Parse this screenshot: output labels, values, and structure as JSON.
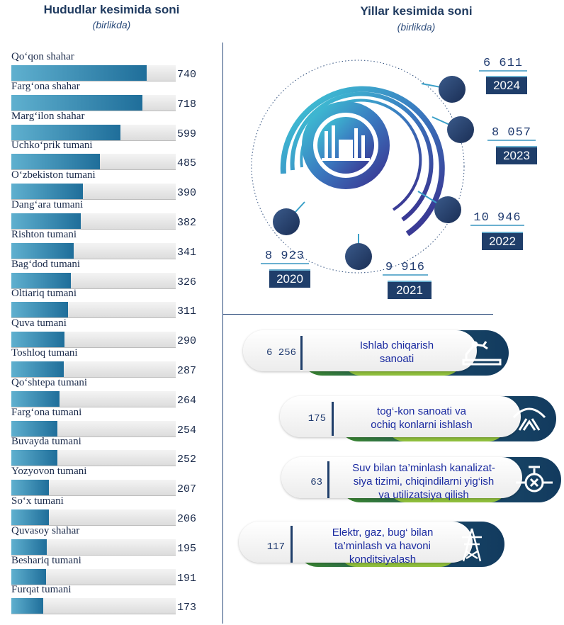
{
  "left": {
    "title": "Hududlar kesimida soni",
    "subtitle": "(birlikda)"
  },
  "right": {
    "title": "Yillar kesimida soni",
    "subtitle": "(birlikda)"
  },
  "chart_data": [
    {
      "type": "bar",
      "title": "Hududlar kesimida soni",
      "subtitle": "(birlikda)",
      "orientation": "horizontal",
      "xlim": [
        0,
        900
      ],
      "categories": [
        "Qo‘qon shahar",
        "Farg‘ona shahar",
        "Marg‘ilon shahar",
        "Uchko‘prik tumani",
        "O‘zbekiston tumani",
        "Dang‘ara tumani",
        "Rishton tumani",
        "Bag‘dod tumani",
        "Oltiariq tumani",
        "Quva tumani",
        "Toshloq tumani",
        "Qo‘shtepa tumani",
        "Farg‘ona tumani",
        "Buvayda tumani",
        "Yozyovon tumani",
        "So‘x tumani",
        "Quvasoy shahar",
        "Beshariq tumani",
        "Furqat tumani"
      ],
      "values": [
        740,
        718,
        599,
        485,
        390,
        382,
        341,
        326,
        311,
        290,
        287,
        264,
        254,
        252,
        207,
        206,
        195,
        191,
        173
      ],
      "value_labels": [
        "740",
        "718",
        "599",
        "485",
        "390",
        "382",
        "341",
        "326",
        "311",
        "290",
        "287",
        "264",
        "254",
        "252",
        "207",
        "206",
        "195",
        "191",
        "173"
      ]
    },
    {
      "type": "bar",
      "title": "Yillar kesimida soni",
      "subtitle": "(birlikda)",
      "categories": [
        "2020",
        "2021",
        "2022",
        "2023",
        "2024"
      ],
      "values": [
        8923,
        9916,
        10946,
        8057,
        6611
      ],
      "value_labels": [
        "8 923",
        "9 916",
        "10 946",
        "8 057",
        "6 611"
      ]
    },
    {
      "type": "table",
      "rows": [
        {
          "value": "6 256",
          "label": "Ishlab chiqarish sanoati",
          "icon": "robot-arm-icon"
        },
        {
          "value": "175",
          "label": "tog‘-kon sanoati va ochiq konlarni ishlash",
          "icon": "mining-icon"
        },
        {
          "value": "63",
          "label": "Suv bilan ta’minlash kanalizatsiya tizimi, chiqindilarni yig‘ish va utilizatsiya qilish",
          "icon": "water-valve-icon"
        },
        {
          "value": "117",
          "label": "Elektr, gaz, bug‘ bilan ta’minlash va havoni konditsiyalash",
          "icon": "power-tower-icon"
        }
      ]
    }
  ],
  "sectors": [
    {
      "value": "6 256",
      "lines": [
        "Ishlab chiqarish",
        "sanoati"
      ],
      "icon": "robot-arm-icon"
    },
    {
      "value": "175",
      "lines": [
        "tog‘-kon sanoati va",
        "ochiq konlarni ishlash"
      ],
      "icon": "mining-icon"
    },
    {
      "value": "63",
      "lines": [
        "Suv bilan ta’minlash kanalizat-",
        "siya tizimi, chiqindilarni yig‘ish",
        "va utilizatsiya qilish"
      ],
      "icon": "water-valve-icon"
    },
    {
      "value": "117",
      "lines": [
        "Elektr, gaz, bug‘ bilan",
        "ta’minlash va havoni",
        "konditsiyalash"
      ],
      "icon": "power-tower-icon"
    }
  ],
  "colors": {
    "bar": "#1f6e9a",
    "navy": "#1f3e6a",
    "green": "#8fbe3c",
    "text_blue": "#1a2aa0"
  }
}
